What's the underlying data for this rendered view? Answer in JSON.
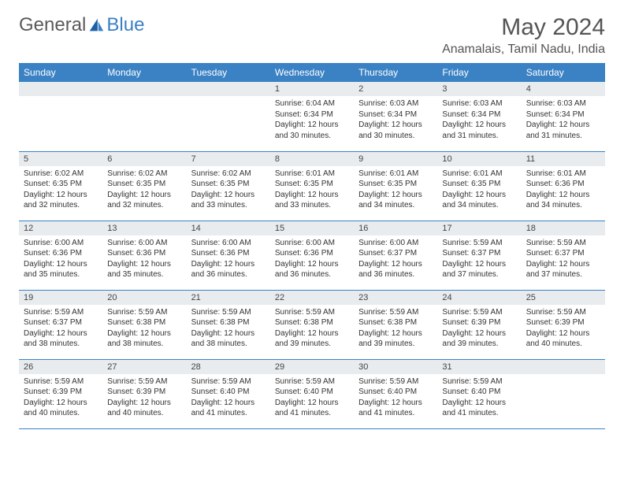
{
  "brand": {
    "part1": "General",
    "part2": "Blue"
  },
  "title": "May 2024",
  "location": "Anamalais, Tamil Nadu, India",
  "headers": [
    "Sunday",
    "Monday",
    "Tuesday",
    "Wednesday",
    "Thursday",
    "Friday",
    "Saturday"
  ],
  "colors": {
    "header_bg": "#3b82c4",
    "header_text": "#ffffff",
    "daynum_bg": "#e8ecef",
    "border": "#3b82c4",
    "text": "#333333",
    "brand_gray": "#5a5a5a",
    "brand_blue": "#3b7fc4"
  },
  "weeks": [
    [
      {
        "day": "",
        "sunrise": "",
        "sunset": "",
        "daylight": ""
      },
      {
        "day": "",
        "sunrise": "",
        "sunset": "",
        "daylight": ""
      },
      {
        "day": "",
        "sunrise": "",
        "sunset": "",
        "daylight": ""
      },
      {
        "day": "1",
        "sunrise": "Sunrise: 6:04 AM",
        "sunset": "Sunset: 6:34 PM",
        "daylight": "Daylight: 12 hours and 30 minutes."
      },
      {
        "day": "2",
        "sunrise": "Sunrise: 6:03 AM",
        "sunset": "Sunset: 6:34 PM",
        "daylight": "Daylight: 12 hours and 30 minutes."
      },
      {
        "day": "3",
        "sunrise": "Sunrise: 6:03 AM",
        "sunset": "Sunset: 6:34 PM",
        "daylight": "Daylight: 12 hours and 31 minutes."
      },
      {
        "day": "4",
        "sunrise": "Sunrise: 6:03 AM",
        "sunset": "Sunset: 6:34 PM",
        "daylight": "Daylight: 12 hours and 31 minutes."
      }
    ],
    [
      {
        "day": "5",
        "sunrise": "Sunrise: 6:02 AM",
        "sunset": "Sunset: 6:35 PM",
        "daylight": "Daylight: 12 hours and 32 minutes."
      },
      {
        "day": "6",
        "sunrise": "Sunrise: 6:02 AM",
        "sunset": "Sunset: 6:35 PM",
        "daylight": "Daylight: 12 hours and 32 minutes."
      },
      {
        "day": "7",
        "sunrise": "Sunrise: 6:02 AM",
        "sunset": "Sunset: 6:35 PM",
        "daylight": "Daylight: 12 hours and 33 minutes."
      },
      {
        "day": "8",
        "sunrise": "Sunrise: 6:01 AM",
        "sunset": "Sunset: 6:35 PM",
        "daylight": "Daylight: 12 hours and 33 minutes."
      },
      {
        "day": "9",
        "sunrise": "Sunrise: 6:01 AM",
        "sunset": "Sunset: 6:35 PM",
        "daylight": "Daylight: 12 hours and 34 minutes."
      },
      {
        "day": "10",
        "sunrise": "Sunrise: 6:01 AM",
        "sunset": "Sunset: 6:35 PM",
        "daylight": "Daylight: 12 hours and 34 minutes."
      },
      {
        "day": "11",
        "sunrise": "Sunrise: 6:01 AM",
        "sunset": "Sunset: 6:36 PM",
        "daylight": "Daylight: 12 hours and 34 minutes."
      }
    ],
    [
      {
        "day": "12",
        "sunrise": "Sunrise: 6:00 AM",
        "sunset": "Sunset: 6:36 PM",
        "daylight": "Daylight: 12 hours and 35 minutes."
      },
      {
        "day": "13",
        "sunrise": "Sunrise: 6:00 AM",
        "sunset": "Sunset: 6:36 PM",
        "daylight": "Daylight: 12 hours and 35 minutes."
      },
      {
        "day": "14",
        "sunrise": "Sunrise: 6:00 AM",
        "sunset": "Sunset: 6:36 PM",
        "daylight": "Daylight: 12 hours and 36 minutes."
      },
      {
        "day": "15",
        "sunrise": "Sunrise: 6:00 AM",
        "sunset": "Sunset: 6:36 PM",
        "daylight": "Daylight: 12 hours and 36 minutes."
      },
      {
        "day": "16",
        "sunrise": "Sunrise: 6:00 AM",
        "sunset": "Sunset: 6:37 PM",
        "daylight": "Daylight: 12 hours and 36 minutes."
      },
      {
        "day": "17",
        "sunrise": "Sunrise: 5:59 AM",
        "sunset": "Sunset: 6:37 PM",
        "daylight": "Daylight: 12 hours and 37 minutes."
      },
      {
        "day": "18",
        "sunrise": "Sunrise: 5:59 AM",
        "sunset": "Sunset: 6:37 PM",
        "daylight": "Daylight: 12 hours and 37 minutes."
      }
    ],
    [
      {
        "day": "19",
        "sunrise": "Sunrise: 5:59 AM",
        "sunset": "Sunset: 6:37 PM",
        "daylight": "Daylight: 12 hours and 38 minutes."
      },
      {
        "day": "20",
        "sunrise": "Sunrise: 5:59 AM",
        "sunset": "Sunset: 6:38 PM",
        "daylight": "Daylight: 12 hours and 38 minutes."
      },
      {
        "day": "21",
        "sunrise": "Sunrise: 5:59 AM",
        "sunset": "Sunset: 6:38 PM",
        "daylight": "Daylight: 12 hours and 38 minutes."
      },
      {
        "day": "22",
        "sunrise": "Sunrise: 5:59 AM",
        "sunset": "Sunset: 6:38 PM",
        "daylight": "Daylight: 12 hours and 39 minutes."
      },
      {
        "day": "23",
        "sunrise": "Sunrise: 5:59 AM",
        "sunset": "Sunset: 6:38 PM",
        "daylight": "Daylight: 12 hours and 39 minutes."
      },
      {
        "day": "24",
        "sunrise": "Sunrise: 5:59 AM",
        "sunset": "Sunset: 6:39 PM",
        "daylight": "Daylight: 12 hours and 39 minutes."
      },
      {
        "day": "25",
        "sunrise": "Sunrise: 5:59 AM",
        "sunset": "Sunset: 6:39 PM",
        "daylight": "Daylight: 12 hours and 40 minutes."
      }
    ],
    [
      {
        "day": "26",
        "sunrise": "Sunrise: 5:59 AM",
        "sunset": "Sunset: 6:39 PM",
        "daylight": "Daylight: 12 hours and 40 minutes."
      },
      {
        "day": "27",
        "sunrise": "Sunrise: 5:59 AM",
        "sunset": "Sunset: 6:39 PM",
        "daylight": "Daylight: 12 hours and 40 minutes."
      },
      {
        "day": "28",
        "sunrise": "Sunrise: 5:59 AM",
        "sunset": "Sunset: 6:40 PM",
        "daylight": "Daylight: 12 hours and 41 minutes."
      },
      {
        "day": "29",
        "sunrise": "Sunrise: 5:59 AM",
        "sunset": "Sunset: 6:40 PM",
        "daylight": "Daylight: 12 hours and 41 minutes."
      },
      {
        "day": "30",
        "sunrise": "Sunrise: 5:59 AM",
        "sunset": "Sunset: 6:40 PM",
        "daylight": "Daylight: 12 hours and 41 minutes."
      },
      {
        "day": "31",
        "sunrise": "Sunrise: 5:59 AM",
        "sunset": "Sunset: 6:40 PM",
        "daylight": "Daylight: 12 hours and 41 minutes."
      },
      {
        "day": "",
        "sunrise": "",
        "sunset": "",
        "daylight": ""
      }
    ]
  ]
}
